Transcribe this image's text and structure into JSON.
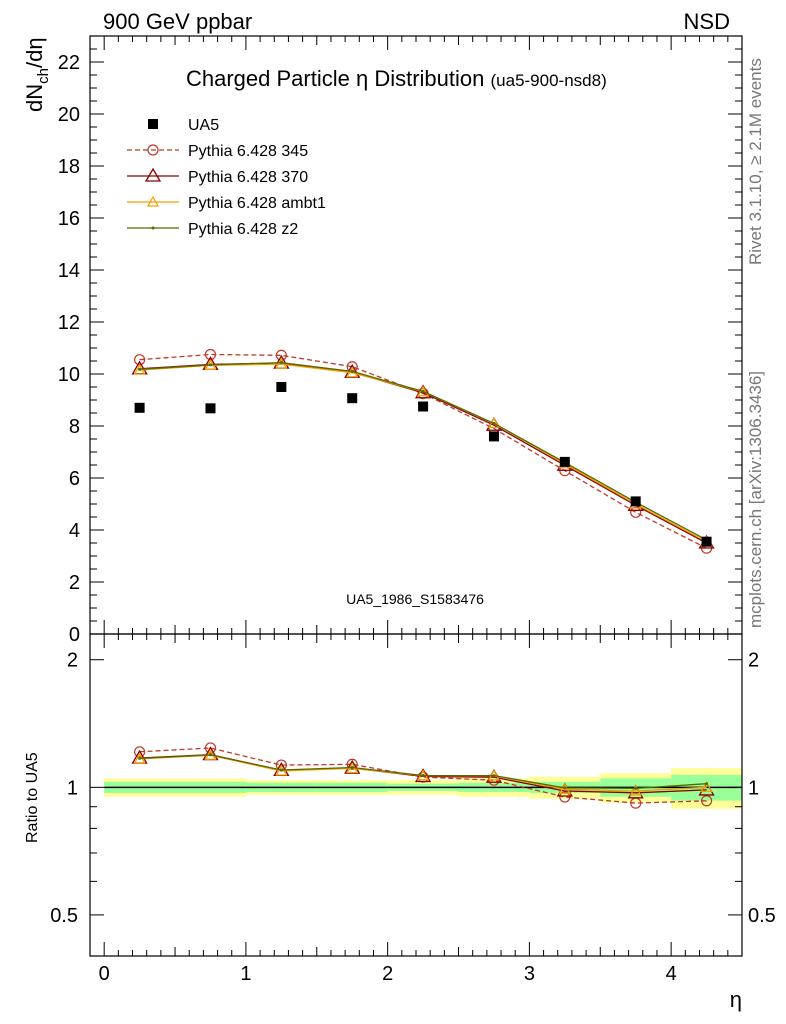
{
  "header": {
    "left": "900 GeV ppbar",
    "right": "NSD"
  },
  "side_labels": {
    "rivet": "Rivet 3.1.10, ≥ 2.1M events",
    "mcplots": "mcplots.cern.ch [arXiv:1306.3436]"
  },
  "chart_data": {
    "type": "scatter",
    "title": "Charged Particle η Distribution",
    "title_sub": "(ua5-900-nsd8)",
    "watermark": "UA5_1986_S1583476",
    "xlabel": "η",
    "ylabel_main": "dN_ch/dη",
    "ylabel_ratio": "Ratio to UA5",
    "xlim": [
      -0.1,
      4.5
    ],
    "ylim_main": [
      0,
      23
    ],
    "ylim_ratio": [
      0.4,
      2.3
    ],
    "x_ticks": [
      "0",
      "1",
      "2",
      "3",
      "4"
    ],
    "y_ticks_main": [
      "0",
      "2",
      "4",
      "6",
      "8",
      "10",
      "12",
      "14",
      "16",
      "18",
      "20",
      "22"
    ],
    "y_ticks_ratio": [
      "0.5",
      "1",
      "2"
    ],
    "x": [
      0.25,
      0.75,
      1.25,
      1.75,
      2.25,
      2.75,
      3.25,
      3.75,
      4.25
    ],
    "bins": [
      [
        0,
        0.5
      ],
      [
        0.5,
        1.0
      ],
      [
        1.0,
        1.5
      ],
      [
        1.5,
        2.0
      ],
      [
        2.0,
        2.5
      ],
      [
        2.5,
        3.0
      ],
      [
        3.0,
        3.5
      ],
      [
        3.5,
        4.0
      ],
      [
        4.0,
        4.5
      ]
    ],
    "data": {
      "name": "UA5",
      "values": [
        8.7,
        8.68,
        9.5,
        9.07,
        8.75,
        7.6,
        6.62,
        5.1,
        3.55
      ],
      "band_green": [
        0.03,
        0.03,
        0.025,
        0.025,
        0.02,
        0.025,
        0.03,
        0.05,
        0.07
      ],
      "band_yellow": [
        0.05,
        0.05,
        0.04,
        0.04,
        0.04,
        0.05,
        0.06,
        0.08,
        0.11
      ]
    },
    "series": [
      {
        "name": "Pythia 6.428 345",
        "color": "#c0392b",
        "marker": "circle",
        "dashed": true,
        "values": [
          10.55,
          10.75,
          10.72,
          10.28,
          9.25,
          7.9,
          6.28,
          4.68,
          3.3
        ]
      },
      {
        "name": "Pythia 6.428 370",
        "color": "#8b0000",
        "marker": "triangle",
        "dashed": false,
        "values": [
          10.2,
          10.37,
          10.42,
          10.07,
          9.28,
          8.03,
          6.49,
          4.95,
          3.5
        ]
      },
      {
        "name": "Pythia 6.428 ambt1",
        "color": "#f0a000",
        "marker": "triangle-small",
        "dashed": false,
        "values": [
          10.15,
          10.33,
          10.38,
          10.05,
          9.32,
          8.1,
          6.55,
          5.0,
          3.55
        ]
      },
      {
        "name": "Pythia 6.428 z2",
        "color": "#556b00",
        "marker": "dot",
        "dashed": false,
        "values": [
          10.18,
          10.35,
          10.44,
          10.1,
          9.33,
          8.1,
          6.6,
          5.07,
          3.62
        ]
      }
    ],
    "legend_placement": "top-left",
    "grid": false
  }
}
